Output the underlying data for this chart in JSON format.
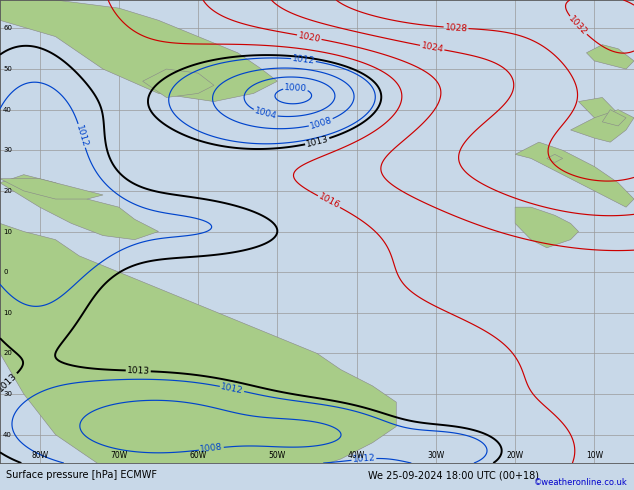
{
  "title_bottom": "Surface pressure [hPa] ECMWF",
  "date_str": "We 25-09-2024 18:00 UTC (00+18)",
  "copyright": "©weatheronline.co.uk",
  "bg_color": "#c8d8e8",
  "land_color": "#a8cc88",
  "land_edge": "#888888",
  "grid_color": "#999999",
  "contour_black": "#000000",
  "contour_red": "#cc0000",
  "contour_blue": "#0044cc",
  "bottom_bar_color": "#b8b8b8",
  "bottom_text_color": "#000000",
  "copyright_color": "#0000cc",
  "font_size_labels": 6.5,
  "lon_min": -85,
  "lon_max": -5,
  "lat_min": -47,
  "lat_max": 67
}
